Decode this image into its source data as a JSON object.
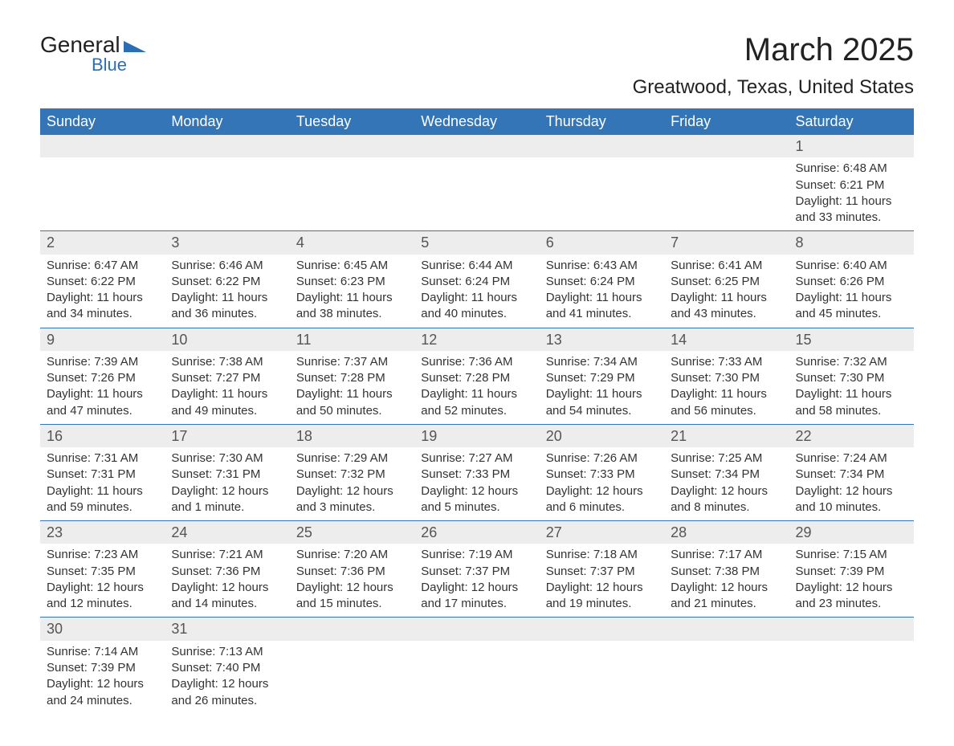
{
  "brand": {
    "text_general": "General",
    "text_blue": "Blue",
    "shape_color": "#2a6fb5"
  },
  "title": "March 2025",
  "location": "Greatwood, Texas, United States",
  "colors": {
    "header_bg": "#3375b6",
    "header_text": "#ffffff",
    "daynum_bg": "#ededed",
    "daynum_text": "#555555",
    "body_text": "#333333",
    "border": "#3375b6",
    "page_bg": "#ffffff"
  },
  "typography": {
    "title_fontsize": 40,
    "subtitle_fontsize": 24,
    "header_fontsize": 18,
    "daynum_fontsize": 18,
    "detail_fontsize": 15,
    "font_family": "Arial"
  },
  "calendar": {
    "type": "table",
    "columns": [
      "Sunday",
      "Monday",
      "Tuesday",
      "Wednesday",
      "Thursday",
      "Friday",
      "Saturday"
    ],
    "weeks": [
      [
        null,
        null,
        null,
        null,
        null,
        null,
        {
          "n": "1",
          "sunrise": "6:48 AM",
          "sunset": "6:21 PM",
          "daylight": "11 hours and 33 minutes."
        }
      ],
      [
        {
          "n": "2",
          "sunrise": "6:47 AM",
          "sunset": "6:22 PM",
          "daylight": "11 hours and 34 minutes."
        },
        {
          "n": "3",
          "sunrise": "6:46 AM",
          "sunset": "6:22 PM",
          "daylight": "11 hours and 36 minutes."
        },
        {
          "n": "4",
          "sunrise": "6:45 AM",
          "sunset": "6:23 PM",
          "daylight": "11 hours and 38 minutes."
        },
        {
          "n": "5",
          "sunrise": "6:44 AM",
          "sunset": "6:24 PM",
          "daylight": "11 hours and 40 minutes."
        },
        {
          "n": "6",
          "sunrise": "6:43 AM",
          "sunset": "6:24 PM",
          "daylight": "11 hours and 41 minutes."
        },
        {
          "n": "7",
          "sunrise": "6:41 AM",
          "sunset": "6:25 PM",
          "daylight": "11 hours and 43 minutes."
        },
        {
          "n": "8",
          "sunrise": "6:40 AM",
          "sunset": "6:26 PM",
          "daylight": "11 hours and 45 minutes."
        }
      ],
      [
        {
          "n": "9",
          "sunrise": "7:39 AM",
          "sunset": "7:26 PM",
          "daylight": "11 hours and 47 minutes."
        },
        {
          "n": "10",
          "sunrise": "7:38 AM",
          "sunset": "7:27 PM",
          "daylight": "11 hours and 49 minutes."
        },
        {
          "n": "11",
          "sunrise": "7:37 AM",
          "sunset": "7:28 PM",
          "daylight": "11 hours and 50 minutes."
        },
        {
          "n": "12",
          "sunrise": "7:36 AM",
          "sunset": "7:28 PM",
          "daylight": "11 hours and 52 minutes."
        },
        {
          "n": "13",
          "sunrise": "7:34 AM",
          "sunset": "7:29 PM",
          "daylight": "11 hours and 54 minutes."
        },
        {
          "n": "14",
          "sunrise": "7:33 AM",
          "sunset": "7:30 PM",
          "daylight": "11 hours and 56 minutes."
        },
        {
          "n": "15",
          "sunrise": "7:32 AM",
          "sunset": "7:30 PM",
          "daylight": "11 hours and 58 minutes."
        }
      ],
      [
        {
          "n": "16",
          "sunrise": "7:31 AM",
          "sunset": "7:31 PM",
          "daylight": "11 hours and 59 minutes."
        },
        {
          "n": "17",
          "sunrise": "7:30 AM",
          "sunset": "7:31 PM",
          "daylight": "12 hours and 1 minute."
        },
        {
          "n": "18",
          "sunrise": "7:29 AM",
          "sunset": "7:32 PM",
          "daylight": "12 hours and 3 minutes."
        },
        {
          "n": "19",
          "sunrise": "7:27 AM",
          "sunset": "7:33 PM",
          "daylight": "12 hours and 5 minutes."
        },
        {
          "n": "20",
          "sunrise": "7:26 AM",
          "sunset": "7:33 PM",
          "daylight": "12 hours and 6 minutes."
        },
        {
          "n": "21",
          "sunrise": "7:25 AM",
          "sunset": "7:34 PM",
          "daylight": "12 hours and 8 minutes."
        },
        {
          "n": "22",
          "sunrise": "7:24 AM",
          "sunset": "7:34 PM",
          "daylight": "12 hours and 10 minutes."
        }
      ],
      [
        {
          "n": "23",
          "sunrise": "7:23 AM",
          "sunset": "7:35 PM",
          "daylight": "12 hours and 12 minutes."
        },
        {
          "n": "24",
          "sunrise": "7:21 AM",
          "sunset": "7:36 PM",
          "daylight": "12 hours and 14 minutes."
        },
        {
          "n": "25",
          "sunrise": "7:20 AM",
          "sunset": "7:36 PM",
          "daylight": "12 hours and 15 minutes."
        },
        {
          "n": "26",
          "sunrise": "7:19 AM",
          "sunset": "7:37 PM",
          "daylight": "12 hours and 17 minutes."
        },
        {
          "n": "27",
          "sunrise": "7:18 AM",
          "sunset": "7:37 PM",
          "daylight": "12 hours and 19 minutes."
        },
        {
          "n": "28",
          "sunrise": "7:17 AM",
          "sunset": "7:38 PM",
          "daylight": "12 hours and 21 minutes."
        },
        {
          "n": "29",
          "sunrise": "7:15 AM",
          "sunset": "7:39 PM",
          "daylight": "12 hours and 23 minutes."
        }
      ],
      [
        {
          "n": "30",
          "sunrise": "7:14 AM",
          "sunset": "7:39 PM",
          "daylight": "12 hours and 24 minutes."
        },
        {
          "n": "31",
          "sunrise": "7:13 AM",
          "sunset": "7:40 PM",
          "daylight": "12 hours and 26 minutes."
        },
        null,
        null,
        null,
        null,
        null
      ]
    ],
    "labels": {
      "sunrise_prefix": "Sunrise: ",
      "sunset_prefix": "Sunset: ",
      "daylight_prefix": "Daylight: "
    }
  }
}
